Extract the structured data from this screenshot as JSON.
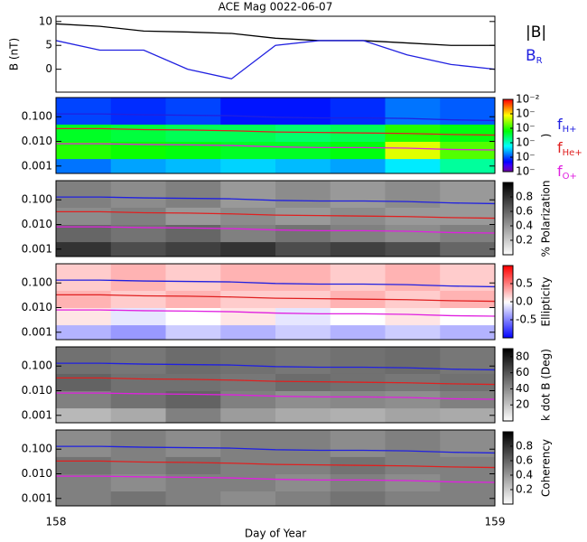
{
  "chart_data": [
    {
      "type": "line",
      "title": "ACE Mag 0022-06-07",
      "ylabel": "B (nT)",
      "x": [
        158.0,
        158.1,
        158.2,
        158.3,
        158.4,
        158.5,
        158.6,
        158.7,
        158.8,
        158.9,
        159.0
      ],
      "xlim": [
        158,
        159
      ],
      "ylim": [
        -4.8,
        11.1
      ],
      "yticks": [
        0,
        5,
        10
      ],
      "series": [
        {
          "name": "|B|",
          "color": "#000000",
          "values": [
            9.5,
            9.0,
            8.0,
            7.8,
            7.5,
            6.5,
            6.0,
            6.0,
            5.5,
            5.0,
            5.0
          ]
        },
        {
          "name": "BR",
          "color": "#2020e0",
          "values": [
            6.0,
            4.0,
            4.0,
            0.0,
            -2.0,
            5.0,
            6.0,
            6.0,
            3.0,
            1.0,
            0.0
          ]
        }
      ]
    },
    {
      "type": "heatmap",
      "colormap": "rainbow",
      "ylog": true,
      "xlim": [
        158,
        159
      ],
      "ylim": [
        0.0005,
        0.6
      ],
      "yticks": [
        {
          "value": 0.1,
          "label": "0.100"
        },
        {
          "value": 0.01,
          "label": "0.010"
        },
        {
          "value": 0.001,
          "label": "0.001"
        }
      ],
      "xbins": [
        158.0,
        158.125,
        158.25,
        158.375,
        158.5,
        158.625,
        158.75,
        158.875,
        159.0
      ],
      "ybins": [
        0.0005,
        0.002,
        0.01,
        0.05,
        0.6
      ],
      "z": [
        [
          -5.8,
          -5.6,
          -5.5,
          -5.4,
          -5.5,
          -5.6,
          -5.3,
          -4.8
        ],
        [
          -4.0,
          -4.1,
          -4.2,
          -4.3,
          -4.3,
          -4.2,
          -3.2,
          -3.8
        ],
        [
          -4.3,
          -4.4,
          -4.5,
          -4.5,
          -4.6,
          -4.5,
          -4.0,
          -4.2
        ],
        [
          -6.0,
          -6.1,
          -6.0,
          -6.2,
          -6.2,
          -6.1,
          -5.8,
          -5.9
        ]
      ],
      "clim": [
        -7,
        -2
      ],
      "cticks": [
        {
          "value": -2,
          "label": "10⁻²"
        },
        {
          "value": -3,
          "label": "10⁻"
        },
        {
          "value": -4,
          "label": "10⁻"
        },
        {
          "value": -5,
          "label": "10⁻"
        },
        {
          "value": -6,
          "label": "10⁻"
        },
        {
          "value": -7,
          "label": "10⁻"
        }
      ],
      "clabel": ")",
      "series": [
        {
          "name": "fH+",
          "color": "#2020e0",
          "values": [
            0.13,
            0.13,
            0.12,
            0.115,
            0.11,
            0.095,
            0.09,
            0.09,
            0.085,
            0.075,
            0.07
          ]
        },
        {
          "name": "fHe+",
          "color": "#e02020",
          "values": [
            0.033,
            0.033,
            0.03,
            0.029,
            0.027,
            0.024,
            0.023,
            0.022,
            0.021,
            0.019,
            0.018
          ]
        },
        {
          "name": "fO+",
          "color": "#e020e0",
          "values": [
            0.008,
            0.008,
            0.0075,
            0.0072,
            0.0068,
            0.006,
            0.0056,
            0.0056,
            0.0053,
            0.0047,
            0.0045
          ]
        }
      ]
    },
    {
      "type": "heatmap",
      "colormap": "gray",
      "ylog": true,
      "xlim": [
        158,
        159
      ],
      "ylim": [
        0.0005,
        0.6
      ],
      "yticks": [
        {
          "value": 0.1,
          "label": "0.100"
        },
        {
          "value": 0.01,
          "label": "0.010"
        },
        {
          "value": 0.001,
          "label": "0.001"
        }
      ],
      "xbins": [
        158.0,
        158.125,
        158.25,
        158.375,
        158.5,
        158.625,
        158.75,
        158.875,
        159.0
      ],
      "ybins": [
        0.0005,
        0.002,
        0.01,
        0.05,
        0.6
      ],
      "z": [
        [
          0.8,
          0.7,
          0.75,
          0.8,
          0.7,
          0.75,
          0.7,
          0.6
        ],
        [
          0.6,
          0.55,
          0.6,
          0.5,
          0.55,
          0.5,
          0.45,
          0.5
        ],
        [
          0.45,
          0.5,
          0.4,
          0.45,
          0.4,
          0.45,
          0.4,
          0.4
        ],
        [
          0.5,
          0.45,
          0.5,
          0.4,
          0.45,
          0.4,
          0.45,
          0.4
        ]
      ],
      "clim": [
        0,
        1
      ],
      "cticks": [
        0.8,
        0.6,
        0.4,
        0.2
      ],
      "clabel": "% Polarization"
    },
    {
      "type": "heatmap",
      "colormap": "bwr",
      "ylog": true,
      "xlim": [
        158,
        159
      ],
      "ylim": [
        0.0005,
        0.6
      ],
      "yticks": [
        {
          "value": 0.1,
          "label": "0.100"
        },
        {
          "value": 0.01,
          "label": "0.010"
        },
        {
          "value": 0.001,
          "label": "0.001"
        }
      ],
      "xbins": [
        158.0,
        158.125,
        158.25,
        158.375,
        158.5,
        158.625,
        158.75,
        158.875,
        159.0
      ],
      "ybins": [
        0.0005,
        0.002,
        0.01,
        0.05,
        0.6
      ],
      "z": [
        [
          -0.3,
          -0.4,
          -0.2,
          -0.3,
          -0.2,
          -0.3,
          -0.2,
          -0.3
        ],
        [
          0.1,
          -0.1,
          0.0,
          0.1,
          -0.1,
          0.0,
          0.1,
          0.0
        ],
        [
          0.3,
          0.2,
          0.3,
          0.2,
          0.2,
          0.3,
          0.2,
          0.3
        ],
        [
          0.2,
          0.3,
          0.2,
          0.3,
          0.3,
          0.2,
          0.3,
          0.2
        ]
      ],
      "clim": [
        -1,
        1
      ],
      "cticks": [
        0.5,
        {
          "value": 0,
          "label": "0.0"
        },
        -0.5
      ],
      "clabel": "Ellipticity"
    },
    {
      "type": "heatmap",
      "colormap": "gray",
      "ylog": true,
      "xlim": [
        158,
        159
      ],
      "ylim": [
        0.0005,
        0.6
      ],
      "yticks": [
        {
          "value": 0.1,
          "label": "0.100"
        },
        {
          "value": 0.01,
          "label": "0.010"
        },
        {
          "value": 0.001,
          "label": "0.001"
        }
      ],
      "xbins": [
        158.0,
        158.125,
        158.25,
        158.375,
        158.5,
        158.625,
        158.75,
        158.875,
        159.0
      ],
      "ybins": [
        0.0005,
        0.002,
        0.01,
        0.05,
        0.6
      ],
      "z": [
        [
          25,
          30,
          45,
          35,
          30,
          28,
          32,
          30
        ],
        [
          45,
          50,
          55,
          45,
          40,
          42,
          40,
          45
        ],
        [
          55,
          50,
          50,
          48,
          52,
          50,
          48,
          50
        ],
        [
          50,
          48,
          52,
          50,
          48,
          50,
          52,
          48
        ]
      ],
      "clim": [
        0,
        90
      ],
      "cticks": [
        80,
        60,
        40,
        20
      ],
      "clabel": "k dot B (Deg)"
    },
    {
      "type": "heatmap",
      "colormap": "gray",
      "ylog": true,
      "xlim": [
        158,
        159
      ],
      "ylim": [
        0.0005,
        0.6
      ],
      "yticks": [
        {
          "value": 0.1,
          "label": "0.100"
        },
        {
          "value": 0.01,
          "label": "0.010"
        },
        {
          "value": 0.001,
          "label": "0.001"
        }
      ],
      "xbins": [
        158.0,
        158.125,
        158.25,
        158.375,
        158.5,
        158.625,
        158.75,
        158.875,
        159.0
      ],
      "ybins": [
        0.0005,
        0.002,
        0.01,
        0.05,
        0.6
      ],
      "z": [
        [
          0.5,
          0.55,
          0.5,
          0.45,
          0.5,
          0.55,
          0.5,
          0.5
        ],
        [
          0.5,
          0.45,
          0.5,
          0.5,
          0.45,
          0.5,
          0.45,
          0.5
        ],
        [
          0.55,
          0.5,
          0.55,
          0.5,
          0.5,
          0.55,
          0.5,
          0.5
        ],
        [
          0.45,
          0.5,
          0.45,
          0.5,
          0.5,
          0.45,
          0.5,
          0.45
        ]
      ],
      "clim": [
        0,
        1
      ],
      "cticks": [
        0.8,
        0.6,
        0.4,
        0.2
      ],
      "clabel": "Coherency",
      "xticks": [
        158,
        159
      ],
      "xlabel": "Day of Year"
    }
  ]
}
